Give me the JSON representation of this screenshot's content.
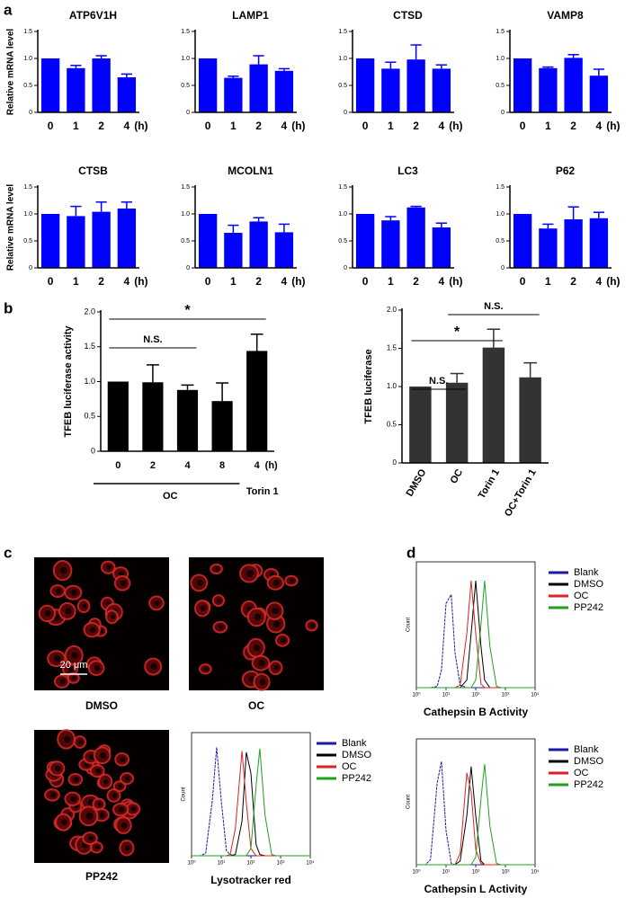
{
  "panel_labels": [
    "a",
    "b",
    "c",
    "d"
  ],
  "images": [
    {
      "label": "DMSO"
    },
    {
      "label": "OC"
    },
    {
      "label": "PP242"
    }
  ],
  "scale_bar": "20 μm",
  "chart_data": [
    {
      "type": "bar",
      "title": "ATP6V1H",
      "y_label": "Relative mRNA level",
      "categories": [
        "0",
        "1",
        "2",
        "4"
      ],
      "x_unit": "(h)",
      "values": [
        1.0,
        0.82,
        1.0,
        0.65
      ],
      "errors": [
        0,
        0.05,
        0.05,
        0.06
      ],
      "color": "#0000ff",
      "ylim": [
        0,
        1.5
      ],
      "yticks": [
        0,
        0.5,
        {
          "value": 1,
          "label": "1.0"
        },
        1.5
      ]
    },
    {
      "type": "bar",
      "title": "LAMP1",
      "categories": [
        "0",
        "1",
        "2",
        "4"
      ],
      "x_unit": "(h)",
      "values": [
        1.0,
        0.64,
        0.89,
        0.77
      ],
      "errors": [
        0,
        0.03,
        0.16,
        0.04
      ],
      "color": "#0000ff",
      "ylim": [
        0,
        1.5
      ],
      "yticks": [
        0,
        0.5,
        {
          "value": 1,
          "label": "1.0"
        },
        1.5
      ]
    },
    {
      "type": "bar",
      "title": "CTSD",
      "categories": [
        "0",
        "1",
        "2",
        "4"
      ],
      "x_unit": "(h)",
      "values": [
        1.0,
        0.81,
        0.98,
        0.81
      ],
      "errors": [
        0,
        0.12,
        0.27,
        0.07
      ],
      "color": "#0000ff",
      "ylim": [
        0,
        1.5
      ],
      "yticks": [
        0,
        0.5,
        {
          "value": 1,
          "label": "1.0"
        },
        1.5
      ]
    },
    {
      "type": "bar",
      "title": "VAMP8",
      "categories": [
        "0",
        "1",
        "2",
        "4"
      ],
      "x_unit": "(h)",
      "values": [
        1.0,
        0.82,
        1.01,
        0.68
      ],
      "errors": [
        0,
        0.02,
        0.06,
        0.12
      ],
      "color": "#0000ff",
      "ylim": [
        0,
        1.5
      ],
      "yticks": [
        0,
        0.5,
        {
          "value": 1,
          "label": "1.0"
        },
        1.5
      ]
    },
    {
      "type": "bar",
      "title": "CTSB",
      "y_label": "Relative mRNA level",
      "categories": [
        "0",
        "1",
        "2",
        "4"
      ],
      "x_unit": "(h)",
      "values": [
        1.0,
        0.96,
        1.04,
        1.1
      ],
      "errors": [
        0,
        0.18,
        0.18,
        0.12
      ],
      "color": "#0000ff",
      "ylim": [
        0,
        1.5
      ],
      "yticks": [
        0,
        0.5,
        {
          "value": 1,
          "label": "1.0"
        },
        1.5
      ]
    },
    {
      "type": "bar",
      "title": "MCOLN1",
      "categories": [
        "0",
        "1",
        "2",
        "4"
      ],
      "x_unit": "(h)",
      "values": [
        1.0,
        0.65,
        0.86,
        0.66
      ],
      "errors": [
        0,
        0.14,
        0.07,
        0.15
      ],
      "color": "#0000ff",
      "ylim": [
        0,
        1.5
      ],
      "yticks": [
        0,
        0.5,
        {
          "value": 1,
          "label": "1.0"
        },
        1.5
      ]
    },
    {
      "type": "bar",
      "title": "LC3",
      "categories": [
        "0",
        "1",
        "2",
        "4"
      ],
      "x_unit": "(h)",
      "values": [
        1.0,
        0.88,
        1.12,
        0.75
      ],
      "errors": [
        0,
        0.07,
        0.02,
        0.08
      ],
      "color": "#0000ff",
      "ylim": [
        0,
        1.5
      ],
      "yticks": [
        0,
        0.5,
        {
          "value": 1,
          "label": "1.0"
        },
        1.5
      ]
    },
    {
      "type": "bar",
      "title": "P62",
      "categories": [
        "0",
        "1",
        "2",
        "4"
      ],
      "x_unit": "(h)",
      "values": [
        1.0,
        0.73,
        0.9,
        0.92
      ],
      "errors": [
        0,
        0.08,
        0.23,
        0.11
      ],
      "color": "#0000ff",
      "ylim": [
        0,
        1.5
      ],
      "yticks": [
        0,
        0.5,
        {
          "value": 1,
          "label": "1.0"
        },
        1.5
      ]
    },
    {
      "type": "bar",
      "y_label": "TFEB luciferase activity",
      "categories": [
        "0",
        "2",
        "4",
        "8",
        "4"
      ],
      "x_unit": "(h)",
      "groups": [
        "OC",
        "Torin 1"
      ],
      "values": [
        1.0,
        0.99,
        0.88,
        0.72,
        1.44
      ],
      "errors": [
        0,
        0.25,
        0.07,
        0.26,
        0.24
      ],
      "color": "#000000",
      "ylim": [
        0,
        2
      ],
      "yticks": [
        0,
        0.5,
        {
          "value": 1,
          "label": "1.0"
        },
        1.5,
        {
          "value": 2,
          "label": "2.0"
        }
      ],
      "annotations": [
        "N.S.",
        "*"
      ]
    },
    {
      "type": "bar",
      "y_label": "TFEB luciferase",
      "categories": [
        "DMSO",
        "OC",
        "Torin 1",
        "OC+Torin 1"
      ],
      "values": [
        1.0,
        1.05,
        1.51,
        1.12
      ],
      "errors": [
        0,
        0.12,
        0.24,
        0.19
      ],
      "color": "#333333",
      "ylim": [
        0,
        2
      ],
      "yticks": [
        0,
        0.5,
        {
          "value": 1,
          "label": "1.0"
        },
        1.5,
        {
          "value": 2,
          "label": "2.0"
        }
      ],
      "annotations": [
        "N.S.",
        "*",
        "N.S."
      ]
    },
    {
      "type": "line",
      "x_label": "Lysotracker red",
      "y_label": "Count",
      "log_x": true,
      "x": [
        1,
        2,
        3,
        5,
        7,
        10,
        15,
        20,
        30,
        50,
        70,
        100,
        150,
        200,
        300,
        500,
        700,
        1000,
        10000
      ],
      "xlim": [
        1,
        10000
      ],
      "xticks": [
        {
          "value": 1,
          "label": "10⁰"
        },
        {
          "value": 10,
          "label": "10¹"
        },
        {
          "value": 100,
          "label": "10²"
        },
        {
          "value": 1000,
          "label": "10³"
        },
        {
          "value": 10000,
          "label": "10⁴"
        }
      ],
      "ylim": [
        0,
        100
      ],
      "series": [
        {
          "name": "Blank",
          "color": "#1a1aa6",
          "values": [
            0,
            0,
            2,
            45,
            88,
            45,
            4,
            1,
            0,
            0,
            0,
            0,
            0,
            0,
            0,
            0,
            0,
            0,
            0
          ]
        },
        {
          "name": "DMSO",
          "color": "#000000",
          "values": [
            0,
            0,
            0,
            0,
            0,
            0,
            0,
            0,
            1,
            28,
            84,
            67,
            9,
            1,
            0,
            0,
            0,
            0,
            0
          ]
        },
        {
          "name": "OC",
          "color": "#e02020",
          "values": [
            0,
            0,
            0,
            0,
            0,
            0,
            0,
            1,
            22,
            85,
            43,
            6,
            0,
            0,
            0,
            0,
            0,
            0,
            0
          ]
        },
        {
          "name": "PP242",
          "color": "#1fa01f",
          "values": [
            0,
            0,
            0,
            0,
            0,
            0,
            0,
            0,
            0,
            0,
            0,
            6,
            57,
            87,
            33,
            1,
            0,
            0,
            0
          ]
        }
      ]
    },
    {
      "type": "line",
      "x_label": "Cathepsin B Activity",
      "y_label": "Count",
      "log_x": true,
      "x": [
        1,
        2,
        3,
        5,
        7,
        10,
        15,
        20,
        30,
        50,
        70,
        100,
        150,
        200,
        300,
        500,
        700,
        1000,
        10000
      ],
      "xlim": [
        1,
        10000
      ],
      "xticks": [
        {
          "value": 1,
          "label": "10⁰"
        },
        {
          "value": 10,
          "label": "10¹"
        },
        {
          "value": 100,
          "label": "10²"
        },
        {
          "value": 1000,
          "label": "10³"
        },
        {
          "value": 10000,
          "label": "10⁴"
        }
      ],
      "ylim": [
        0,
        100
      ],
      "series": [
        {
          "name": "Blank",
          "color": "#1a1aa6",
          "values": [
            0,
            0,
            0,
            1,
            14,
            67,
            74,
            28,
            2,
            0,
            0,
            0,
            0,
            0,
            0,
            0,
            0,
            0,
            0
          ]
        },
        {
          "name": "DMSO",
          "color": "#000000",
          "values": [
            0,
            0,
            0,
            0,
            0,
            0,
            0,
            0,
            0,
            6,
            43,
            85,
            33,
            6,
            0,
            0,
            0,
            0,
            0
          ]
        },
        {
          "name": "OC",
          "color": "#e02020",
          "values": [
            0,
            0,
            0,
            0,
            0,
            0,
            0,
            0,
            2,
            43,
            85,
            43,
            3,
            0,
            0,
            0,
            0,
            0,
            0
          ]
        },
        {
          "name": "PP242",
          "color": "#1fa01f",
          "values": [
            0,
            0,
            0,
            0,
            0,
            0,
            0,
            0,
            0,
            0,
            0,
            6,
            50,
            85,
            33,
            1,
            0,
            0,
            0
          ]
        }
      ]
    },
    {
      "type": "line",
      "x_label": "Cathepsin L Activity",
      "y_label": "Count",
      "log_x": true,
      "x": [
        1,
        2,
        3,
        5,
        7,
        10,
        15,
        20,
        30,
        50,
        70,
        100,
        150,
        200,
        300,
        500,
        700,
        1000,
        10000
      ],
      "xlim": [
        1,
        10000
      ],
      "xticks": [
        {
          "value": 1,
          "label": "10⁰"
        },
        {
          "value": 10,
          "label": "10¹"
        },
        {
          "value": 100,
          "label": "10²"
        },
        {
          "value": 1000,
          "label": "10³"
        },
        {
          "value": 10000,
          "label": "10⁴"
        }
      ],
      "ylim": [
        0,
        100
      ],
      "series": [
        {
          "name": "Blank",
          "color": "#1a1aa6",
          "values": [
            0,
            0,
            4,
            65,
            82,
            27,
            1,
            0,
            0,
            0,
            0,
            0,
            0,
            0,
            0,
            0,
            0,
            0,
            0
          ]
        },
        {
          "name": "DMSO",
          "color": "#000000",
          "values": [
            0,
            0,
            0,
            0,
            0,
            0,
            0,
            0,
            3,
            39,
            78,
            39,
            3,
            0,
            0,
            0,
            0,
            0,
            0
          ]
        },
        {
          "name": "OC",
          "color": "#e02020",
          "values": [
            0,
            0,
            0,
            0,
            0,
            0,
            0,
            0,
            9,
            73,
            58,
            12,
            1,
            0,
            0,
            0,
            0,
            0,
            0
          ]
        },
        {
          "name": "PP242",
          "color": "#1fa01f",
          "values": [
            0,
            0,
            0,
            0,
            0,
            0,
            0,
            0,
            0,
            0,
            0,
            6,
            52,
            80,
            31,
            1,
            0,
            0,
            0
          ]
        }
      ]
    }
  ]
}
